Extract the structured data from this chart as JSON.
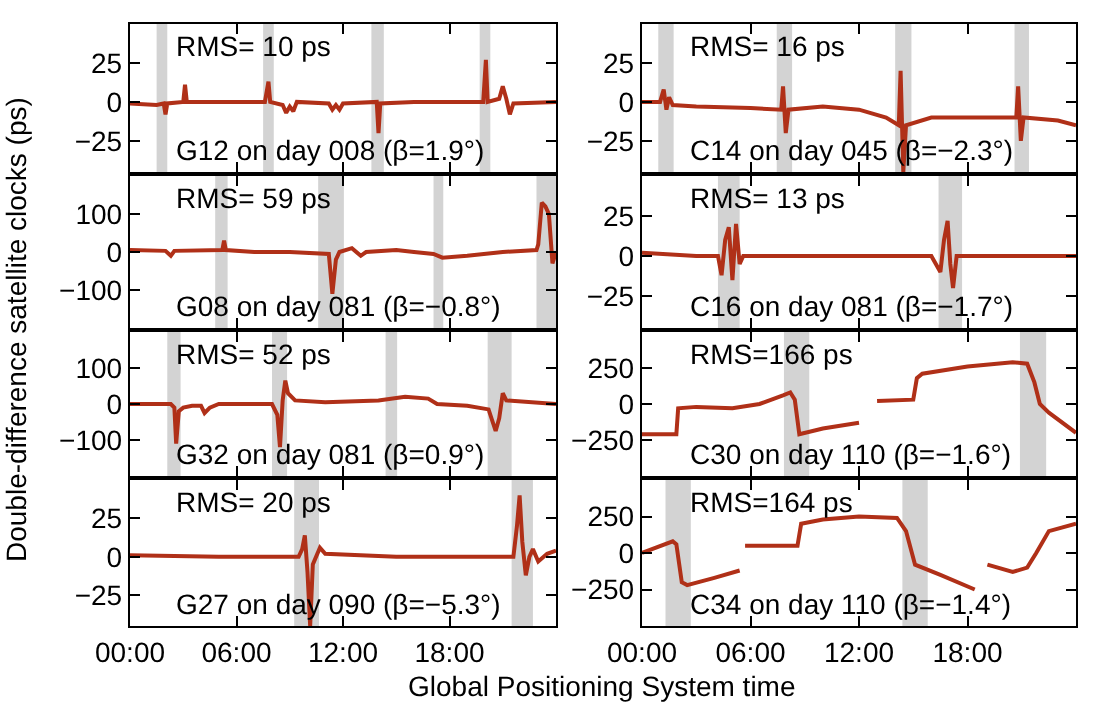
{
  "chart_data": [
    {
      "type": "line",
      "ylabel": "Double-difference satellite clocks (ps)",
      "color": "#b03018",
      "tick_labels": "y",
      "xlim": [
        0,
        24
      ],
      "xticks": [
        {
          "value": 0,
          "label": null
        },
        {
          "value": 6,
          "label": null
        },
        {
          "value": 12,
          "label": null
        },
        {
          "value": 18,
          "label": null
        }
      ],
      "ylim": [
        -45,
        50
      ],
      "yticks": [
        -25,
        0,
        25
      ],
      "x": [
        0,
        1.5,
        1.9,
        2.0,
        2.1,
        3.0,
        3.1,
        3.2,
        5.0,
        7.6,
        7.8,
        7.9,
        8.6,
        8.8,
        9.0,
        9.2,
        9.4,
        11.2,
        11.4,
        11.6,
        11.8,
        12.0,
        13.9,
        14.0,
        14.1,
        16,
        19.9,
        20.05,
        20.15,
        20.8,
        21.0,
        21.2,
        21.4,
        21.6,
        24
      ],
      "values": [
        -1,
        -2,
        -1,
        -8,
        -1,
        0,
        11,
        0,
        0,
        0,
        13,
        0,
        -2,
        -7,
        -3,
        -6,
        0,
        -1,
        -5,
        -2,
        -5,
        -1,
        0,
        -20,
        -1,
        0,
        0,
        27,
        0,
        2,
        10,
        2,
        -8,
        -1,
        0
      ],
      "bands": [
        {
          "axis": "x",
          "from": 1.5,
          "to": 2.1,
          "color": "#d3d3d3"
        },
        {
          "axis": "x",
          "from": 7.5,
          "to": 8.1,
          "color": "#d3d3d3"
        },
        {
          "axis": "x",
          "from": 13.6,
          "to": 14.3,
          "color": "#d3d3d3"
        },
        {
          "axis": "x",
          "from": 19.7,
          "to": 20.3,
          "color": "#d3d3d3"
        }
      ],
      "annotations": [
        "RMS= 10 ps",
        "G12 on day 008 (β=1.9°)"
      ]
    },
    {
      "type": "line",
      "color": "#b03018",
      "tick_labels": "y",
      "xlim": [
        0,
        24
      ],
      "xticks": [
        {
          "value": 0,
          "label": null
        },
        {
          "value": 6,
          "label": null
        },
        {
          "value": 12,
          "label": null
        },
        {
          "value": 18,
          "label": null
        }
      ],
      "ylim": [
        -45,
        50
      ],
      "yticks": [
        -25,
        0,
        25
      ],
      "x": [
        0,
        1.0,
        1.2,
        1.35,
        1.5,
        1.7,
        3,
        6,
        7.7,
        7.8,
        7.95,
        8.1,
        10,
        12,
        13.5,
        14.2,
        14.3,
        14.45,
        14.6,
        16,
        20.7,
        20.8,
        20.95,
        21.1,
        23,
        24
      ],
      "values": [
        0,
        0,
        8,
        -5,
        3,
        -2,
        -3,
        -4,
        -5,
        10,
        -20,
        -5,
        -3,
        -5,
        -10,
        -15,
        20,
        -45,
        -15,
        -10,
        -10,
        10,
        -25,
        -10,
        -12,
        -15
      ],
      "bands": [
        {
          "axis": "x",
          "from": 0.9,
          "to": 1.75,
          "color": "#d3d3d3"
        },
        {
          "axis": "x",
          "from": 7.45,
          "to": 8.3,
          "color": "#d3d3d3"
        },
        {
          "axis": "x",
          "from": 14.0,
          "to": 14.9,
          "color": "#d3d3d3"
        },
        {
          "axis": "x",
          "from": 20.6,
          "to": 21.4,
          "color": "#d3d3d3"
        }
      ],
      "annotations": [
        "RMS= 16 ps",
        "C14 on day 045 (β=−2.3°)"
      ]
    },
    {
      "type": "line",
      "color": "#b03018",
      "tick_labels": "y",
      "xlim": [
        0,
        24
      ],
      "xticks": [
        {
          "value": 0,
          "label": null
        },
        {
          "value": 6,
          "label": null
        },
        {
          "value": 12,
          "label": null
        },
        {
          "value": 18,
          "label": null
        }
      ],
      "ylim": [
        -200,
        200
      ],
      "yticks": [
        -100,
        0,
        100
      ],
      "x": [
        0,
        2,
        2.3,
        2.5,
        5.2,
        5.3,
        5.4,
        7,
        9,
        11.2,
        11.4,
        11.6,
        11.8,
        12.5,
        13.0,
        13.3,
        15,
        16,
        17.1,
        17.6,
        19,
        21,
        22.9,
        23.0,
        23.2,
        23.4,
        23.6,
        23.8,
        24
      ],
      "values": [
        5,
        3,
        -10,
        3,
        5,
        30,
        5,
        0,
        0,
        -5,
        -110,
        -20,
        0,
        10,
        -10,
        0,
        5,
        0,
        -5,
        -15,
        -10,
        0,
        5,
        20,
        130,
        120,
        100,
        -30,
        0
      ],
      "bands": [
        {
          "axis": "x",
          "from": 4.8,
          "to": 5.5,
          "color": "#d3d3d3"
        },
        {
          "axis": "x",
          "from": 10.6,
          "to": 12.05,
          "color": "#d3d3d3"
        },
        {
          "axis": "x",
          "from": 17.1,
          "to": 17.65,
          "color": "#d3d3d3"
        },
        {
          "axis": "x",
          "from": 22.9,
          "to": 24,
          "color": "#d3d3d3"
        }
      ],
      "annotations": [
        "RMS= 59 ps",
        "G08 on day 081 (β=−0.8°)"
      ]
    },
    {
      "type": "line",
      "color": "#b03018",
      "tick_labels": "y",
      "xlim": [
        0,
        24
      ],
      "xticks": [
        {
          "value": 0,
          "label": null
        },
        {
          "value": 6,
          "label": null
        },
        {
          "value": 12,
          "label": null
        },
        {
          "value": 18,
          "label": null
        }
      ],
      "ylim": [
        -45,
        50
      ],
      "yticks": [
        -25,
        0,
        25
      ],
      "x": [
        0,
        3,
        4.2,
        4.4,
        4.6,
        4.8,
        5.0,
        5.2,
        5.4,
        5.6,
        10,
        16,
        16.5,
        16.7,
        16.9,
        17.05,
        17.2,
        17.4,
        20,
        24
      ],
      "values": [
        2,
        0,
        0,
        -12,
        10,
        18,
        -15,
        20,
        -5,
        0,
        0,
        0,
        -10,
        10,
        22,
        -5,
        -20,
        0,
        0,
        0
      ],
      "bands": [
        {
          "axis": "x",
          "from": 4.2,
          "to": 5.4,
          "color": "#d3d3d3"
        },
        {
          "axis": "x",
          "from": 16.4,
          "to": 17.7,
          "color": "#d3d3d3"
        }
      ],
      "annotations": [
        "RMS= 13 ps",
        "C16 on day 081 (β=−1.7°)"
      ]
    },
    {
      "type": "line",
      "color": "#b03018",
      "tick_labels": "y",
      "xlim": [
        0,
        24
      ],
      "xticks": [
        {
          "value": 0,
          "label": null
        },
        {
          "value": 6,
          "label": null
        },
        {
          "value": 12,
          "label": null
        },
        {
          "value": 18,
          "label": null
        }
      ],
      "ylim": [
        -200,
        200
      ],
      "yticks": [
        -100,
        0,
        100
      ],
      "x": [
        0,
        2.3,
        2.5,
        2.6,
        2.75,
        3.0,
        3.5,
        4.0,
        4.2,
        4.5,
        5,
        8.0,
        8.3,
        8.45,
        8.6,
        8.75,
        8.9,
        9.3,
        11,
        14,
        15.5,
        16.8,
        17.3,
        19,
        20.2,
        20.6,
        20.8,
        21.0,
        21.2,
        24
      ],
      "values": [
        0,
        0,
        -10,
        -110,
        -20,
        -10,
        -5,
        -5,
        -25,
        -10,
        0,
        0,
        -30,
        -120,
        10,
        65,
        30,
        10,
        5,
        10,
        20,
        15,
        0,
        -5,
        -15,
        -75,
        -40,
        30,
        10,
        0
      ],
      "bands": [
        {
          "axis": "x",
          "from": 2.1,
          "to": 2.85,
          "color": "#d3d3d3"
        },
        {
          "axis": "x",
          "from": 8.0,
          "to": 8.85,
          "color": "#d3d3d3"
        },
        {
          "axis": "x",
          "from": 14.4,
          "to": 15.05,
          "color": "#d3d3d3"
        },
        {
          "axis": "x",
          "from": 20.15,
          "to": 21.5,
          "color": "#d3d3d3"
        }
      ],
      "annotations": [
        "RMS= 52 ps",
        "G32 on day 081 (β=0.9°)"
      ]
    },
    {
      "type": "line",
      "color": "#b03018",
      "tick_labels": "y",
      "xlim": [
        0,
        24
      ],
      "xticks": [
        {
          "value": 0,
          "label": null
        },
        {
          "value": 6,
          "label": null
        },
        {
          "value": 12,
          "label": null
        },
        {
          "value": 18,
          "label": null
        }
      ],
      "ylim": [
        -500,
        500
      ],
      "yticks": [
        -250,
        0,
        250
      ],
      "x": [
        0,
        1.9,
        2.0,
        3,
        5,
        6.5,
        7.8,
        8.2,
        8.45,
        8.7,
        10,
        12.0,
        12.5,
        13.0,
        15.0,
        15.2,
        15.5,
        18,
        20.5,
        21.3,
        21.7,
        22.0,
        22.5,
        24
      ],
      "values": [
        -210,
        -210,
        -30,
        -20,
        -30,
        0,
        60,
        80,
        30,
        -210,
        -170,
        -130,
        null,
        20,
        30,
        180,
        210,
        260,
        290,
        280,
        150,
        0,
        -60,
        -200
      ],
      "bands": [
        {
          "axis": "x",
          "from": 7.85,
          "to": 9.25,
          "color": "#d3d3d3"
        },
        {
          "axis": "x",
          "from": 20.9,
          "to": 22.35,
          "color": "#d3d3d3"
        }
      ],
      "annotations": [
        "RMS=166 ps",
        "C30 on day 110 (β=−1.6°)"
      ]
    },
    {
      "type": "line",
      "color": "#b03018",
      "xlabel": "Global Positioning System time",
      "xlim": [
        0,
        24
      ],
      "xticks": [
        {
          "value": 0,
          "label": "00:00"
        },
        {
          "value": 6,
          "label": "06:00"
        },
        {
          "value": 12,
          "label": "12:00"
        },
        {
          "value": 18,
          "label": "18:00"
        }
      ],
      "ylim": [
        -45,
        50
      ],
      "yticks": [
        -25,
        0,
        25
      ],
      "x": [
        0,
        5,
        9.5,
        9.7,
        9.85,
        10.0,
        10.15,
        10.3,
        10.7,
        11,
        15,
        20,
        21.6,
        21.8,
        21.95,
        22.1,
        22.3,
        22.5,
        22.7,
        23,
        23.5,
        24
      ],
      "values": [
        1,
        0,
        0,
        5,
        14,
        -10,
        -45,
        -5,
        6,
        2,
        0,
        0,
        0,
        20,
        40,
        10,
        -12,
        0,
        5,
        -3,
        2,
        4
      ],
      "bands": [
        {
          "axis": "x",
          "from": 9.25,
          "to": 10.65,
          "color": "#d3d3d3"
        },
        {
          "axis": "x",
          "from": 21.5,
          "to": 22.7,
          "color": "#d3d3d3"
        }
      ],
      "annotations": [
        "RMS= 20 ps",
        "G27 on day 090 (β=−5.3°)"
      ]
    },
    {
      "type": "line",
      "color": "#b03018",
      "xlim": [
        0,
        24
      ],
      "xticks": [
        {
          "value": 0,
          "label": "00:00"
        },
        {
          "value": 6,
          "label": "06:00"
        },
        {
          "value": 12,
          "label": "12:00"
        },
        {
          "value": 18,
          "label": "18:00"
        }
      ],
      "ylim": [
        -500,
        500
      ],
      "yticks": [
        -250,
        0,
        250
      ],
      "x": [
        0,
        1.7,
        1.9,
        2.2,
        2.5,
        4,
        5.4,
        5.5,
        5.7,
        8.6,
        8.8,
        10,
        12,
        14.1,
        14.6,
        15.1,
        16.5,
        18.4,
        18.7,
        19.1,
        20.5,
        21.3,
        21.8,
        22.5,
        24
      ],
      "values": [
        0,
        80,
        60,
        -200,
        -220,
        -170,
        -120,
        null,
        50,
        50,
        200,
        230,
        250,
        240,
        150,
        -80,
        -150,
        -250,
        null,
        -80,
        -130,
        -100,
        0,
        150,
        200
      ],
      "bands": [
        {
          "axis": "x",
          "from": 1.3,
          "to": 2.7,
          "color": "#d3d3d3"
        },
        {
          "axis": "x",
          "from": 14.4,
          "to": 15.8,
          "color": "#d3d3d3"
        }
      ],
      "annotations": [
        "RMS=164 ps",
        "C34 on day 110 (β=−1.4°)"
      ]
    }
  ]
}
